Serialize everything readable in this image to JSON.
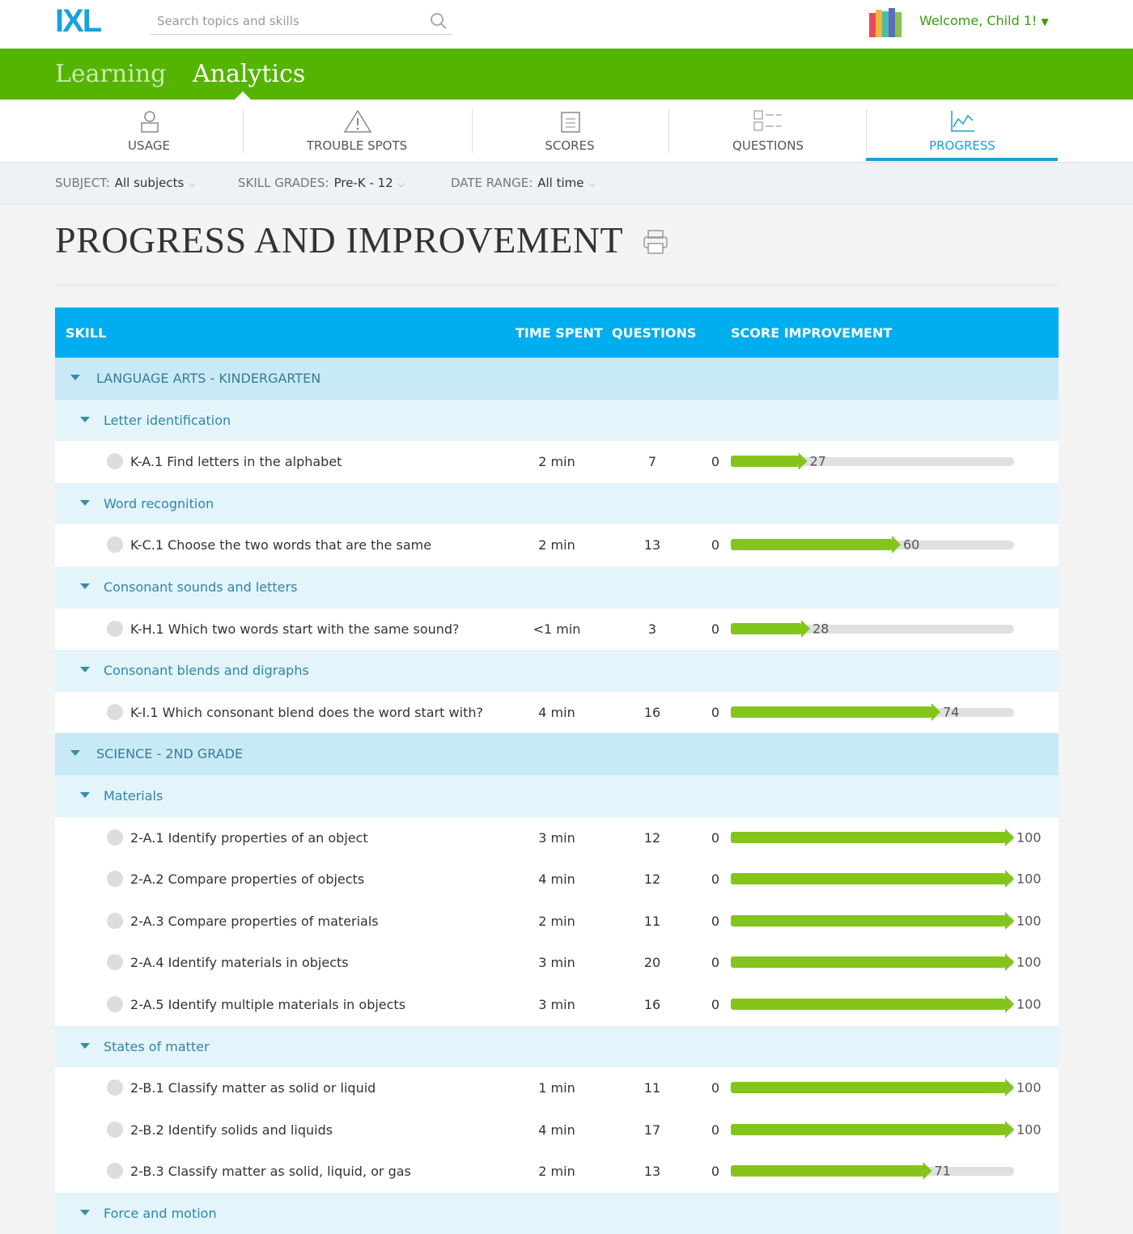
{
  "header": {
    "logo": "IXL",
    "search_placeholder": "Search topics and skills",
    "welcome": "Welcome, Child 1!"
  },
  "nav": {
    "tabs": [
      "Learning",
      "Analytics"
    ]
  },
  "subnav": [
    "USAGE",
    "TROUBLE SPOTS",
    "SCORES",
    "QUESTIONS",
    "PROGRESS"
  ],
  "filters": [
    {
      "label": "SUBJECT:",
      "value": "All subjects"
    },
    {
      "label": "SKILL GRADES:",
      "value": "Pre-K - 12"
    },
    {
      "label": "DATE RANGE:",
      "value": "All time"
    }
  ],
  "page_title": "PROGRESS AND IMPROVEMENT",
  "table": {
    "columns": [
      "SKILL",
      "TIME SPENT",
      "QUESTIONS",
      "SCORE IMPROVEMENT"
    ],
    "groups": [
      {
        "name": "LANGUAGE ARTS - KINDERGARTEN",
        "sections": [
          {
            "name": "Letter identification",
            "skills": [
              {
                "skill": "K-A.1 Find letters in the alphabet",
                "time": "2 min",
                "questions": 7,
                "from": 0,
                "to": 27
              }
            ]
          },
          {
            "name": "Word recognition",
            "skills": [
              {
                "skill": "K-C.1 Choose the two words that are the same",
                "time": "2 min",
                "questions": 13,
                "from": 0,
                "to": 60
              }
            ]
          },
          {
            "name": "Consonant sounds and letters",
            "skills": [
              {
                "skill": "K-H.1 Which two words start with the same sound?",
                "time": "<1 min",
                "questions": 3,
                "from": 0,
                "to": 28
              }
            ]
          },
          {
            "name": "Consonant blends and digraphs",
            "skills": [
              {
                "skill": "K-I.1 Which consonant blend does the word start with?",
                "time": "4 min",
                "questions": 16,
                "from": 0,
                "to": 74
              }
            ]
          }
        ]
      },
      {
        "name": "SCIENCE - 2ND GRADE",
        "sections": [
          {
            "name": "Materials",
            "skills": [
              {
                "skill": "2-A.1 Identify properties of an object",
                "time": "3 min",
                "questions": 12,
                "from": 0,
                "to": 100
              },
              {
                "skill": "2-A.2 Compare properties of objects",
                "time": "4 min",
                "questions": 12,
                "from": 0,
                "to": 100
              },
              {
                "skill": "2-A.3 Compare properties of materials",
                "time": "2 min",
                "questions": 11,
                "from": 0,
                "to": 100
              },
              {
                "skill": "2-A.4 Identify materials in objects",
                "time": "3 min",
                "questions": 20,
                "from": 0,
                "to": 100
              },
              {
                "skill": "2-A.5 Identify multiple materials in objects",
                "time": "3 min",
                "questions": 16,
                "from": 0,
                "to": 100
              }
            ]
          },
          {
            "name": "States of matter",
            "skills": [
              {
                "skill": "2-B.1 Classify matter as solid or liquid",
                "time": "1 min",
                "questions": 11,
                "from": 0,
                "to": 100
              },
              {
                "skill": "2-B.2 Identify solids and liquids",
                "time": "4 min",
                "questions": 17,
                "from": 0,
                "to": 100
              },
              {
                "skill": "2-B.3 Classify matter as solid, liquid, or gas",
                "time": "2 min",
                "questions": 13,
                "from": 0,
                "to": 71
              }
            ]
          },
          {
            "name": "Force and motion",
            "skills": []
          }
        ]
      }
    ]
  }
}
